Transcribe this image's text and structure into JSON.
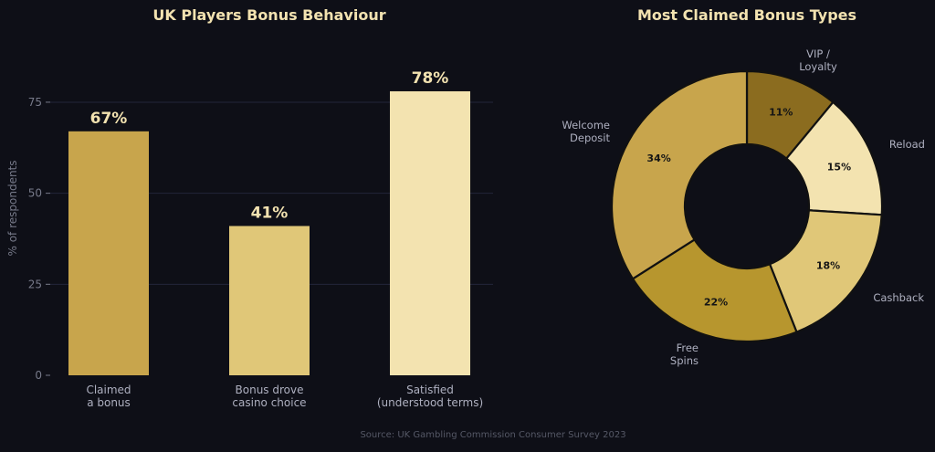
{
  "chart_data": [
    {
      "type": "bar",
      "title": "UK Players Bonus Behaviour",
      "ylabel": "% of respondents",
      "ylim": [
        0,
        80
      ],
      "yticks": [
        0,
        25,
        50,
        75
      ],
      "categories": [
        [
          "Claimed",
          "a bonus"
        ],
        [
          "Bonus drove",
          "casino choice"
        ],
        [
          "Satisfied",
          "(understood terms)"
        ]
      ],
      "values": [
        67,
        41,
        78
      ],
      "data_labels": [
        "67%",
        "41%",
        "78%"
      ],
      "colors": [
        "#c8a54c",
        "#e0c778",
        "#f3e3b0"
      ],
      "grid": true
    },
    {
      "type": "pie",
      "title": "Most Claimed Bonus Types",
      "donut": true,
      "slices": [
        {
          "label": [
            "VIP /",
            "Loyalty"
          ],
          "value": 11,
          "pct_label": "11%",
          "color": "#8b6c1f"
        },
        {
          "label": [
            "Reload"
          ],
          "value": 15,
          "pct_label": "15%",
          "color": "#f3e3b0"
        },
        {
          "label": [
            "Cashback"
          ],
          "value": 18,
          "pct_label": "18%",
          "color": "#e0c778"
        },
        {
          "label": [
            "Free",
            "Spins"
          ],
          "value": 22,
          "pct_label": "22%",
          "color": "#b7962e"
        },
        {
          "label": [
            "Welcome",
            "Deposit"
          ],
          "value": 34,
          "pct_label": "34%",
          "color": "#c8a54c"
        }
      ]
    }
  ],
  "source": "Source: UK Gambling Commission Consumer Survey 2023"
}
